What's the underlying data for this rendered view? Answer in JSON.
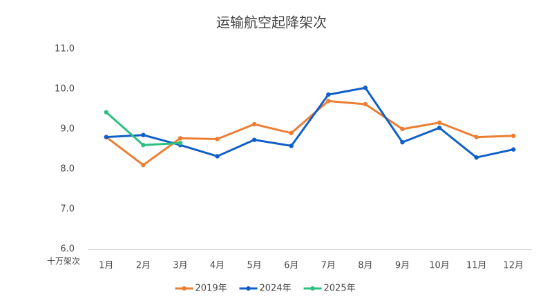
{
  "chart_data": {
    "type": "line",
    "title": "运输航空起降架次",
    "y_unit": "十万架次",
    "categories": [
      "1月",
      "2月",
      "3月",
      "4月",
      "5月",
      "6月",
      "7月",
      "8月",
      "9月",
      "10月",
      "11月",
      "12月"
    ],
    "series": [
      {
        "name": "2019年",
        "color": "#ed7d31",
        "values": [
          8.8,
          8.1,
          8.77,
          8.75,
          9.12,
          8.9,
          9.7,
          9.62,
          9.0,
          9.16,
          8.8,
          8.83
        ]
      },
      {
        "name": "2024年",
        "color": "#0f5fc8",
        "values": [
          8.8,
          8.85,
          8.6,
          8.32,
          8.73,
          8.58,
          9.86,
          10.03,
          8.67,
          9.03,
          8.29,
          8.49
        ]
      },
      {
        "name": "2025年",
        "color": "#2dbf7f",
        "values": [
          9.42,
          8.6,
          8.65,
          null,
          null,
          null,
          null,
          null,
          null,
          null,
          null,
          null
        ]
      }
    ],
    "ylim": [
      6,
      11
    ],
    "yticks": [
      {
        "value": 6,
        "label": "6.0"
      },
      {
        "value": 7,
        "label": "7.0"
      },
      {
        "value": 8,
        "label": "8.0"
      },
      {
        "value": 9,
        "label": "9.0"
      },
      {
        "value": 10,
        "label": "10.0"
      },
      {
        "value": 11,
        "label": "11.0"
      }
    ],
    "grid": false,
    "legend": "bottom"
  }
}
